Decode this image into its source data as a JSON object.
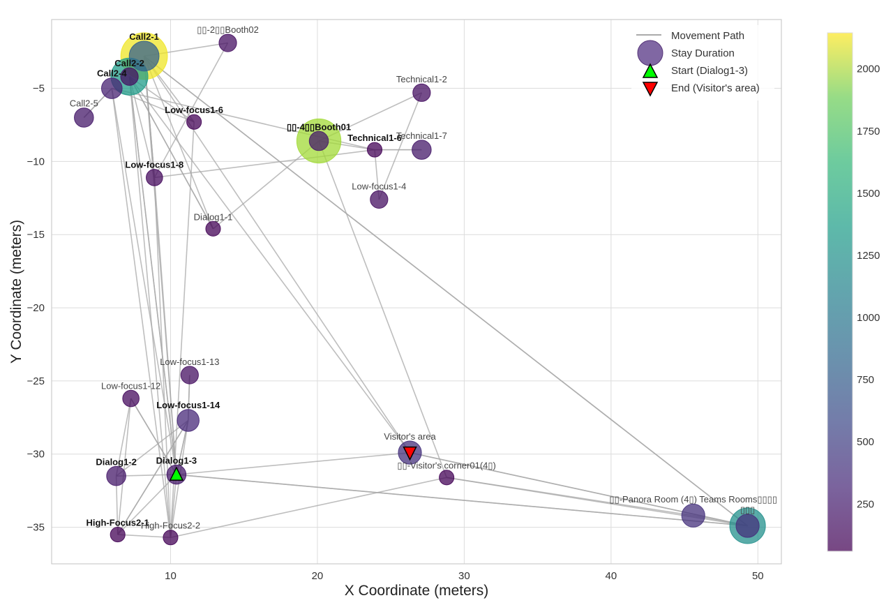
{
  "chart_data": {
    "type": "scatter",
    "subtype": "movement-path-scatter",
    "title": "",
    "xlabel": "X Coordinate (meters)",
    "ylabel": "Y Coordinate (meters)",
    "xlim": [
      1.9,
      51.6
    ],
    "ylim": [
      -37.5,
      -0.3
    ],
    "xticks": [
      10,
      20,
      30,
      40,
      50
    ],
    "yticks": [
      -5,
      -10,
      -15,
      -20,
      -25,
      -30,
      -35
    ],
    "grid": true,
    "colorbar": {
      "colormap": "viridis",
      "range": [
        60,
        2145
      ],
      "ticks": [
        250,
        500,
        750,
        1000,
        1250,
        1500,
        1750,
        2000
      ]
    },
    "legend": {
      "placement": "top-right",
      "entries": [
        {
          "label": "Movement Path",
          "marker": "line"
        },
        {
          "label": "Stay Duration",
          "marker": "circle"
        },
        {
          "label": "Start (Dialog1-3)",
          "marker": "triangle-up",
          "color": "#00ff00"
        },
        {
          "label": "End (Visitor's area)",
          "marker": "triangle-down",
          "color": "#ff0000"
        }
      ]
    },
    "locations": [
      {
        "id": "call2-1",
        "name": "Call2-1",
        "x": 8.2,
        "y": -2.8,
        "stays": [
          2100,
          700
        ],
        "bold": true
      },
      {
        "id": "call2-2",
        "name": "Call2-2",
        "x": 7.2,
        "y": -4.2,
        "stays": [
          1200,
          150
        ],
        "bold": true
      },
      {
        "id": "call2-4",
        "name": "Call2-4",
        "x": 6.0,
        "y": -5.0,
        "stays": [
          250
        ],
        "bold": true
      },
      {
        "id": "call2-5",
        "name": "Call2-5",
        "x": 4.1,
        "y": -7.0,
        "stays": [
          200
        ],
        "bold": false
      },
      {
        "id": "booth02",
        "name": "▯▯-2▯▯Booth02",
        "x": 13.9,
        "y": -1.9,
        "stays": [
          150
        ],
        "bold": false
      },
      {
        "id": "lowfocus1-6",
        "name": "Low-focus1-6",
        "x": 11.6,
        "y": -7.3,
        "stays": [
          80
        ],
        "bold": true
      },
      {
        "id": "booth01",
        "name": "▯▯-4▯▯Booth01",
        "x": 20.1,
        "y": -8.6,
        "stays": [
          1850,
          200
        ],
        "bold": true
      },
      {
        "id": "technical1-6",
        "name": "Technical1-6",
        "x": 23.9,
        "y": -9.2,
        "stays": [
          80
        ],
        "bold": true
      },
      {
        "id": "technical1-7",
        "name": "Technical1-7",
        "x": 27.1,
        "y": -9.2,
        "stays": [
          200
        ],
        "bold": false
      },
      {
        "id": "technical1-2",
        "name": "Technical1-2",
        "x": 27.1,
        "y": -5.3,
        "stays": [
          150
        ],
        "bold": false
      },
      {
        "id": "lowfocus1-4",
        "name": "Low-focus1-4",
        "x": 24.2,
        "y": -12.6,
        "stays": [
          150
        ],
        "bold": false
      },
      {
        "id": "lowfocus1-8",
        "name": "Low-focus1-8",
        "x": 8.9,
        "y": -11.1,
        "stays": [
          120
        ],
        "bold": true
      },
      {
        "id": "dialog1-1",
        "name": "Dialog1-1",
        "x": 12.9,
        "y": -14.6,
        "stays": [
          80
        ],
        "bold": false
      },
      {
        "id": "lowfocus1-13",
        "name": "Low-focus1-13",
        "x": 11.3,
        "y": -24.6,
        "stays": [
          150
        ],
        "bold": false
      },
      {
        "id": "lowfocus1-12",
        "name": "Low-focus1-12",
        "x": 7.3,
        "y": -26.2,
        "stays": [
          120
        ],
        "bold": false
      },
      {
        "id": "lowfocus1-14",
        "name": "Low-focus1-14",
        "x": 11.2,
        "y": -27.7,
        "stays": [
          300
        ],
        "bold": true
      },
      {
        "id": "dialog1-2",
        "name": "Dialog1-2",
        "x": 6.3,
        "y": -31.5,
        "stays": [
          200
        ],
        "bold": true
      },
      {
        "id": "dialog1-3",
        "name": "Dialog1-3",
        "x": 10.4,
        "y": -31.4,
        "stays": [
          200
        ],
        "bold": true
      },
      {
        "id": "highfocus2-1",
        "name": "High-Focus2-1",
        "x": 6.4,
        "y": -35.5,
        "stays": [
          80
        ],
        "bold": true
      },
      {
        "id": "highfocus2-2",
        "name": "High-Focus2-2",
        "x": 10.0,
        "y": -35.7,
        "stays": [
          80
        ],
        "bold": false
      },
      {
        "id": "visitors-area",
        "name": "Visitor's area",
        "x": 26.3,
        "y": -29.9,
        "stays": [
          350
        ],
        "bold": false
      },
      {
        "id": "visitors-corner",
        "name": "▯▯-Visitor's corner01(4▯)",
        "x": 28.8,
        "y": -31.6,
        "stays": [
          80
        ],
        "bold": false
      },
      {
        "id": "panora-room",
        "name": "▯▯-Panora Room (4▯) Teams Rooms▯▯▯▯",
        "x": 45.6,
        "y": -34.2,
        "stays": [
          350
        ],
        "bold": false
      },
      {
        "id": "teams-room",
        "name": "▯▯▯",
        "x": 49.3,
        "y": -34.9,
        "stays": [
          1100,
          350
        ],
        "bold": false
      }
    ],
    "path": [
      "dialog1-3",
      "lowfocus1-14",
      "lowfocus1-13",
      "lowfocus1-14",
      "dialog1-2",
      "lowfocus1-12",
      "dialog1-3",
      "highfocus2-1",
      "dialog1-2",
      "dialog1-3",
      "lowfocus1-14",
      "highfocus2-1",
      "highfocus2-2",
      "dialog1-3",
      "lowfocus1-12",
      "highfocus2-1",
      "lowfocus1-14",
      "highfocus2-2",
      "visitors-corner",
      "panora-room",
      "teams-room",
      "dialog1-3",
      "call2-2",
      "lowfocus1-8",
      "call2-1",
      "booth02",
      "lowfocus1-8",
      "highfocus2-2",
      "call2-4",
      "call2-5",
      "call2-4",
      "dialog1-3",
      "call2-1",
      "dialog1-1",
      "booth01",
      "technical1-6",
      "technical1-7",
      "technical1-6",
      "lowfocus1-4",
      "technical1-2",
      "booth01",
      "visitors-corner",
      "teams-room",
      "call2-1",
      "lowfocus1-6",
      "call2-2",
      "dialog1-1",
      "call2-2",
      "visitors-area",
      "call2-1",
      "lowfocus1-8",
      "dialog1-3",
      "call2-2",
      "highfocus2-2",
      "lowfocus1-6",
      "call2-4",
      "technical1-6",
      "lowfocus1-8",
      "call2-1",
      "teams-room",
      "dialog1-3",
      "visitors-area",
      "teams-room",
      "visitors-area"
    ],
    "start": "dialog1-3",
    "end": "visitors-area"
  }
}
